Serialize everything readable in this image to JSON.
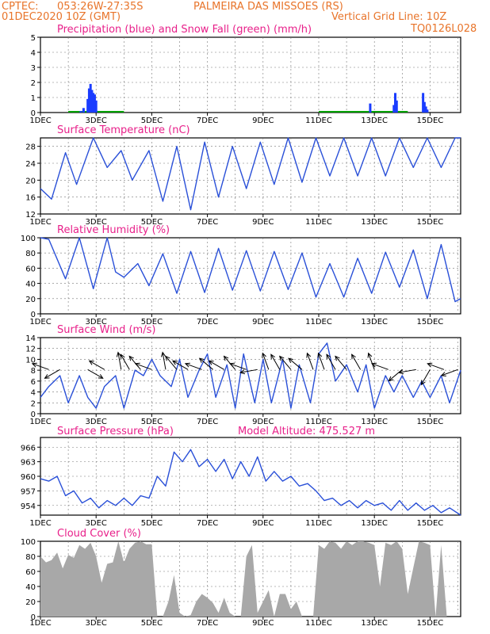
{
  "header": {
    "line1_left": "CPTEC:",
    "line1_coords": "053:26W-27:35S",
    "line1_place": "PALMEIRA DAS MISSOES (RS)",
    "line2_left": "01DEC2020 10Z (GMT)",
    "line2_right": "Vertical Grid Line: 10Z",
    "run_id": "TQ0126L028"
  },
  "colors": {
    "header": "#e8742a",
    "title": "#e8208a",
    "precip": "#1a3cff",
    "snow": "#00a000",
    "line": "#2a50d8",
    "cloud": "#a8a8a8"
  },
  "x_tick_labels": [
    "1DEC",
    "3DEC",
    "5DEC",
    "7DEC",
    "9DEC",
    "11DEC",
    "13DEC",
    "15DEC"
  ],
  "chart_data": [
    {
      "id": "precip",
      "type": "bar",
      "title": "Precipitation (blue) and Snow Fall (green) (mm/h)",
      "ylim": [
        0,
        5
      ],
      "yticks": [
        0,
        1,
        2,
        3,
        4,
        5
      ],
      "x_range_days": [
        1,
        16.1
      ],
      "series": [
        {
          "name": "Precipitation",
          "x": [
            2.45,
            2.55,
            2.7,
            2.75,
            2.8,
            2.85,
            2.9,
            2.95,
            3.0,
            12.85,
            13.7,
            13.75,
            13.8,
            14.75,
            14.8,
            14.85,
            14.9
          ],
          "values": [
            0.1,
            0.3,
            0.9,
            1.6,
            1.9,
            1.5,
            1.3,
            1.2,
            0.8,
            0.6,
            0.5,
            1.3,
            0.8,
            1.3,
            0.7,
            0.4,
            0.2
          ]
        },
        {
          "name": "Snow Fall",
          "x": [
            2.0,
            3.0,
            4.0,
            11.0,
            12.0,
            13.0,
            14.0
          ],
          "values": [
            0,
            0,
            0,
            0,
            0,
            0,
            0
          ]
        }
      ]
    },
    {
      "id": "temp",
      "type": "line",
      "title": "Surface Temperature (nC)",
      "ylim": [
        12,
        30
      ],
      "yticks": [
        12,
        16,
        20,
        24,
        28
      ],
      "x": [
        1.0,
        1.4,
        1.9,
        2.3,
        2.9,
        3.4,
        3.9,
        4.3,
        4.9,
        5.4,
        5.9,
        6.4,
        6.9,
        7.4,
        7.9,
        8.4,
        8.9,
        9.4,
        9.9,
        10.4,
        10.9,
        11.4,
        11.9,
        12.4,
        12.9,
        13.4,
        13.9,
        14.4,
        14.9,
        15.4,
        15.9,
        16.1
      ],
      "values": [
        18,
        15.5,
        26.5,
        19,
        30,
        23,
        27,
        20,
        27,
        15,
        28,
        13,
        29,
        16,
        28,
        18,
        29,
        19,
        30,
        19.5,
        30,
        21,
        30,
        21,
        30,
        21,
        30,
        23,
        30,
        23,
        30,
        30
      ]
    },
    {
      "id": "rh",
      "type": "line",
      "title": "Relative Humidity (%)",
      "ylim": [
        0,
        100
      ],
      "yticks": [
        0,
        20,
        40,
        60,
        80,
        100
      ],
      "x": [
        1.0,
        1.3,
        1.9,
        2.4,
        2.9,
        3.4,
        3.7,
        4.0,
        4.5,
        4.9,
        5.4,
        5.9,
        6.4,
        6.9,
        7.4,
        7.9,
        8.4,
        8.9,
        9.4,
        9.9,
        10.4,
        10.9,
        11.4,
        11.9,
        12.4,
        12.9,
        13.4,
        13.9,
        14.4,
        14.9,
        15.4,
        15.9,
        16.1
      ],
      "values": [
        100,
        98,
        46,
        100,
        33,
        100,
        55,
        48,
        66,
        37,
        79,
        27,
        82,
        28,
        86,
        31,
        83,
        30,
        82,
        32,
        80,
        22,
        66,
        22,
        73,
        27,
        81,
        35,
        84,
        20,
        91,
        16,
        20
      ]
    },
    {
      "id": "wind",
      "type": "line",
      "title": "Surface Wind (m/s)",
      "ylim": [
        0,
        14
      ],
      "yticks": [
        0,
        2,
        4,
        6,
        8,
        10,
        12,
        14
      ],
      "x": [
        1.0,
        1.3,
        1.7,
        2.0,
        2.4,
        2.7,
        3.0,
        3.3,
        3.7,
        4.0,
        4.4,
        4.7,
        5.0,
        5.3,
        5.7,
        6.0,
        6.3,
        6.7,
        7.0,
        7.3,
        7.7,
        8.0,
        8.3,
        8.7,
        9.0,
        9.3,
        9.7,
        10.0,
        10.3,
        10.7,
        11.0,
        11.3,
        11.6,
        12.0,
        12.4,
        12.7,
        13.0,
        13.4,
        13.7,
        14.0,
        14.4,
        14.7,
        15.0,
        15.4,
        15.7,
        16.1
      ],
      "values": [
        3,
        5,
        7,
        2,
        7,
        3,
        1,
        5,
        7,
        1,
        8,
        7,
        10,
        7,
        5,
        10,
        3,
        8,
        11,
        3,
        9,
        1,
        11,
        2,
        10,
        2,
        10,
        1,
        9,
        2,
        11,
        13,
        6,
        9,
        4,
        9,
        1,
        7,
        4,
        7,
        3,
        6,
        3,
        7,
        2,
        8
      ],
      "arrows_x": [
        1.3,
        1.7,
        2.7,
        3.3,
        3.9,
        4.2,
        4.6,
        5.0,
        5.5,
        5.9,
        6.3,
        6.8,
        7.2,
        7.6,
        8.0,
        8.4,
        8.8,
        9.2,
        9.6,
        10.0,
        10.4,
        10.8,
        11.2,
        11.6,
        12.0,
        12.5,
        13.0,
        13.5,
        14.0,
        14.5,
        15.0,
        15.5,
        16.0
      ],
      "arrows_dir_deg": [
        200,
        150,
        30,
        210,
        260,
        240,
        230,
        200,
        260,
        230,
        210,
        200,
        220,
        210,
        230,
        200,
        170,
        250,
        240,
        230,
        220,
        250,
        250,
        240,
        230,
        240,
        250,
        200,
        140,
        170,
        120,
        200,
        160
      ]
    },
    {
      "id": "pres",
      "type": "line",
      "title": "Surface Pressure (hPa)",
      "annotation": "Model Altitude: 475.527 m",
      "ylim": [
        952,
        968
      ],
      "yticks": [
        954,
        957,
        960,
        963,
        966
      ],
      "x": [
        1.0,
        1.3,
        1.6,
        1.9,
        2.2,
        2.5,
        2.8,
        3.1,
        3.4,
        3.7,
        4.0,
        4.3,
        4.6,
        4.9,
        5.2,
        5.5,
        5.8,
        6.1,
        6.4,
        6.7,
        7.0,
        7.3,
        7.6,
        7.9,
        8.2,
        8.5,
        8.8,
        9.1,
        9.4,
        9.7,
        10.0,
        10.3,
        10.6,
        10.9,
        11.2,
        11.5,
        11.8,
        12.1,
        12.4,
        12.7,
        13.0,
        13.3,
        13.6,
        13.9,
        14.2,
        14.5,
        14.8,
        15.1,
        15.4,
        15.7,
        16.1
      ],
      "values": [
        959.5,
        959,
        960,
        956,
        957,
        954.5,
        955.5,
        953.5,
        955,
        954,
        955.5,
        954,
        956,
        955.5,
        960,
        958,
        965,
        963,
        965.5,
        962,
        963.5,
        961,
        963.5,
        959.5,
        963,
        960,
        964,
        959,
        961,
        959,
        960,
        958,
        958.5,
        957,
        955,
        955.5,
        954,
        955,
        953.5,
        955,
        954,
        954.5,
        953,
        955,
        953,
        954.5,
        953,
        954,
        952.5,
        953.5,
        952
      ]
    },
    {
      "id": "cloud",
      "type": "area",
      "title": "Cloud Cover (%)",
      "ylim": [
        0,
        100
      ],
      "yticks": [
        0,
        20,
        40,
        60,
        80,
        100
      ],
      "x": [
        1.0,
        1.2,
        1.4,
        1.6,
        1.8,
        2.0,
        2.2,
        2.4,
        2.6,
        2.8,
        3.0,
        3.2,
        3.4,
        3.6,
        3.8,
        4.0,
        4.2,
        4.4,
        4.6,
        4.8,
        5.0,
        5.2,
        5.4,
        5.6,
        5.8,
        6.0,
        6.2,
        6.4,
        6.6,
        6.8,
        7.0,
        7.2,
        7.4,
        7.6,
        7.8,
        8.0,
        8.2,
        8.4,
        8.6,
        8.8,
        9.0,
        9.2,
        9.4,
        9.6,
        9.8,
        10.0,
        10.2,
        10.4,
        10.6,
        10.8,
        11.0,
        11.2,
        11.4,
        11.6,
        11.8,
        12.0,
        12.2,
        12.4,
        12.6,
        12.8,
        13.0,
        13.2,
        13.4,
        13.6,
        13.8,
        14.0,
        14.2,
        14.4,
        14.6,
        14.8,
        15.0,
        15.2,
        15.4,
        15.6,
        15.8,
        16.1
      ],
      "values": [
        80,
        72,
        75,
        85,
        64,
        82,
        78,
        95,
        90,
        98,
        80,
        45,
        70,
        72,
        100,
        72,
        90,
        98,
        100,
        96,
        96,
        0,
        0,
        20,
        55,
        5,
        0,
        2,
        20,
        30,
        25,
        18,
        5,
        25,
        5,
        0,
        0,
        80,
        95,
        5,
        20,
        35,
        0,
        30,
        30,
        10,
        20,
        0,
        0,
        0,
        95,
        90,
        100,
        98,
        90,
        100,
        95,
        100,
        100,
        98,
        95,
        40,
        98,
        95,
        100,
        90,
        30,
        65,
        100,
        98,
        95,
        0,
        95,
        0,
        0,
        0
      ]
    }
  ]
}
